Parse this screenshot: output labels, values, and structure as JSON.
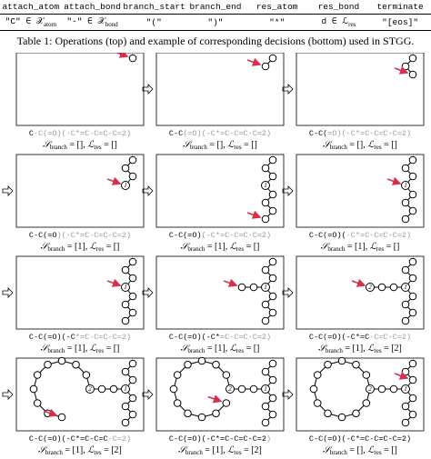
{
  "table": {
    "header": [
      "attach_atom",
      "attach_bond",
      "branch_start",
      "branch_end",
      "res_atom",
      "res_bond",
      "terminate"
    ],
    "decisions": [
      {
        "main": "\"C\" ∈ 𝒳",
        "sub": "atom"
      },
      {
        "main": "\"-\" ∈ 𝒳",
        "sub": "bond"
      },
      {
        "main": "\"(\""
      },
      {
        "main": "\")\""
      },
      {
        "main": "\"*\""
      },
      {
        "main": "d ∈ ℒ",
        "sub": "res"
      },
      {
        "main": "\"[eos]\""
      }
    ],
    "caption": "Table 1: Operations (top) and example of corresponding decisions (bottom) used in STGG."
  },
  "state_template": {
    "s": "𝒮",
    "s_sub": "branch",
    "eq": " = ",
    "sep": ", ",
    "l": "ℒ",
    "l_sub": "res"
  },
  "node_labels": {
    "branch": "1",
    "ring": "2"
  },
  "panels": [
    {
      "smiles_done": "C",
      "smiles_rest": "-C(=O)(-C*=C-C=C-C=2)",
      "branch": "[]",
      "res": "[]"
    },
    {
      "smiles_done": "C-C",
      "smiles_rest": "(=O)(-C*=C-C=C-C=2)",
      "branch": "[]",
      "res": "[]"
    },
    {
      "smiles_done": "C-C(",
      "smiles_rest": "=O)(-C*=C-C=C-C=2)",
      "branch": "[]",
      "res": "[]"
    },
    {
      "smiles_done": "C-C(=O",
      "smiles_rest": ")(-C*=C-C=C-C=2)",
      "branch": "[1]",
      "res": "[]"
    },
    {
      "smiles_done": "C-C(=O)",
      "smiles_rest": "(-C*=C-C=C-C=2)",
      "branch": "[1]",
      "res": "[]"
    },
    {
      "smiles_done": "C-C(=O)(",
      "smiles_rest": "-C*=C-C=C-C=2)",
      "branch": "[1]",
      "res": "[]"
    },
    {
      "smiles_done": "C-C(=O)(-C",
      "smiles_rest": "*=C-C=C-C=2)",
      "branch": "[1]",
      "res": "[]"
    },
    {
      "smiles_done": "C-C(=O)(-C*",
      "smiles_rest": "=C-C=C-C=2)",
      "branch": "[1]",
      "res": "[]"
    },
    {
      "smiles_done": "C-C(=O)(-C*=C",
      "smiles_rest": "-C=C-C=2)",
      "branch": "[1]",
      "res": "[2]"
    },
    {
      "smiles_done": "C-C(=O)(-C*=C-C=C",
      "smiles_rest": "-C=2)",
      "branch": "[1]",
      "res": "[2]"
    },
    {
      "smiles_done": "C-C(=O)(-C*=C-C=C-C=2",
      "smiles_rest": ")",
      "branch": "[1]",
      "res": "[2]"
    },
    {
      "smiles_done": "C-C(=O)(-C*=C-C=C-C=2)",
      "branch": "[]",
      "res": "[]"
    }
  ]
}
